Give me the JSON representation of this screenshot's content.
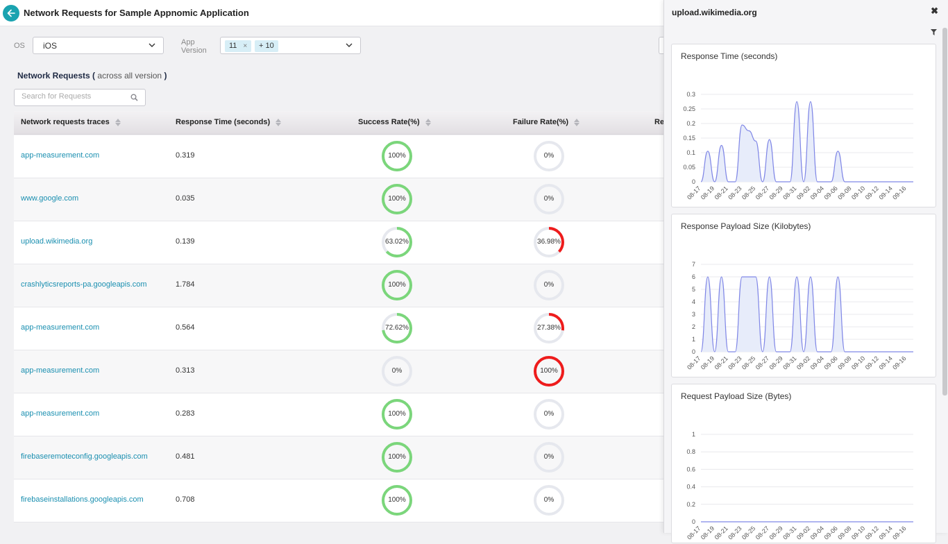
{
  "header": {
    "title": "Network Requests for Sample Appnomic Application"
  },
  "filters": {
    "os_label": "OS",
    "os_value": "iOS",
    "app_version_label_line1": "App",
    "app_version_label_line2": "Version",
    "app_version_chips": [
      "11",
      "+ 10"
    ],
    "chip_remove": "×"
  },
  "section": {
    "title": "Network Requests",
    "paren_open": "(",
    "subtitle": "across all version",
    "paren_close": ")",
    "search_placeholder": "Search for Requests"
  },
  "table": {
    "headers": [
      "Network requests traces",
      "Response Time (seconds)",
      "Success Rate(%)",
      "Failure Rate(%)",
      "Re"
    ],
    "rows": [
      {
        "trace": "app-measurement.com",
        "response_time": "0.319",
        "success": 100,
        "success_label": "100%",
        "failure": 0,
        "failure_label": "0%"
      },
      {
        "trace": "www.google.com",
        "response_time": "0.035",
        "success": 100,
        "success_label": "100%",
        "failure": 0,
        "failure_label": "0%"
      },
      {
        "trace": "upload.wikimedia.org",
        "response_time": "0.139",
        "success": 63.02,
        "success_label": "63.02%",
        "failure": 36.98,
        "failure_label": "36.98%"
      },
      {
        "trace": "crashlyticsreports-pa.googleapis.com",
        "response_time": "1.784",
        "success": 100,
        "success_label": "100%",
        "failure": 0,
        "failure_label": "0%"
      },
      {
        "trace": "app-measurement.com",
        "response_time": "0.564",
        "success": 72.62,
        "success_label": "72.62%",
        "failure": 27.38,
        "failure_label": "27.38%"
      },
      {
        "trace": "app-measurement.com",
        "response_time": "0.313",
        "success": 0,
        "success_label": "0%",
        "failure": 100,
        "failure_label": "100%"
      },
      {
        "trace": "app-measurement.com",
        "response_time": "0.283",
        "success": 100,
        "success_label": "100%",
        "failure": 0,
        "failure_label": "0%"
      },
      {
        "trace": "firebaseremoteconfig.googleapis.com",
        "response_time": "0.481",
        "success": 100,
        "success_label": "100%",
        "failure": 0,
        "failure_label": "0%"
      },
      {
        "trace": "firebaseinstallations.googleapis.com",
        "response_time": "0.708",
        "success": 100,
        "success_label": "100%",
        "failure": 0,
        "failure_label": "0%"
      }
    ]
  },
  "panel": {
    "title": "upload.wikimedia.org",
    "close": "✖"
  },
  "colors": {
    "accent": "#1aa3b0",
    "link": "#1a8fb0",
    "success": "#7bd67b",
    "failure": "#ee1c1c",
    "track": "#e6e8ee",
    "line": "#7f86e6",
    "area": "#e7ecfa"
  },
  "chart_data": [
    {
      "type": "area",
      "title": "Response Time (seconds)",
      "x": [
        "08-17",
        "08-18",
        "08-19",
        "08-20",
        "08-21",
        "08-22",
        "08-23",
        "08-24",
        "08-25",
        "08-26",
        "08-27",
        "08-28",
        "08-29",
        "08-30",
        "08-31",
        "09-01",
        "09-02",
        "09-03",
        "09-04",
        "09-05",
        "09-06",
        "09-07",
        "09-08",
        "09-09",
        "09-10",
        "09-11",
        "09-12",
        "09-13",
        "09-14",
        "09-15",
        "09-16",
        "09-17"
      ],
      "x_tick_labels": [
        "08-17",
        "08-19",
        "08-21",
        "08-23",
        "08-25",
        "08-27",
        "08-29",
        "08-31",
        "09-02",
        "09-04",
        "09-06",
        "09-08",
        "09-10",
        "09-12",
        "09-14",
        "09-16"
      ],
      "series": [
        {
          "values": [
            0,
            0.105,
            0,
            0.125,
            0,
            0,
            0.195,
            0.175,
            0.14,
            0,
            0.145,
            0,
            0,
            0,
            0.275,
            0,
            0.275,
            0,
            0,
            0,
            0.105,
            0,
            0,
            0,
            0,
            0,
            0,
            0,
            0,
            0,
            0,
            0
          ]
        }
      ],
      "ylim": [
        0,
        0.3
      ],
      "y_ticks": [
        "0",
        "0.05",
        "0.1",
        "0.15",
        "0.2",
        "0.25",
        "0.3"
      ]
    },
    {
      "type": "area",
      "title": "Response Payload Size (Kilobytes)",
      "x": [
        "08-17",
        "08-18",
        "08-19",
        "08-20",
        "08-21",
        "08-22",
        "08-23",
        "08-24",
        "08-25",
        "08-26",
        "08-27",
        "08-28",
        "08-29",
        "08-30",
        "08-31",
        "09-01",
        "09-02",
        "09-03",
        "09-04",
        "09-05",
        "09-06",
        "09-07",
        "09-08",
        "09-09",
        "09-10",
        "09-11",
        "09-12",
        "09-13",
        "09-14",
        "09-15",
        "09-16",
        "09-17"
      ],
      "x_tick_labels": [
        "08-17",
        "08-19",
        "08-21",
        "08-23",
        "08-25",
        "08-27",
        "08-29",
        "08-31",
        "09-02",
        "09-04",
        "09-06",
        "09-08",
        "09-10",
        "09-12",
        "09-14",
        "09-16"
      ],
      "series": [
        {
          "values": [
            0,
            6,
            0,
            6,
            0,
            0,
            6,
            6,
            6,
            0,
            6,
            0,
            0,
            0,
            6,
            0,
            6,
            0,
            0,
            0,
            6,
            0,
            0,
            0,
            0,
            0,
            0,
            0,
            0,
            0,
            0,
            0
          ]
        }
      ],
      "ylim": [
        0,
        7
      ],
      "y_ticks": [
        "0",
        "1",
        "2",
        "3",
        "4",
        "5",
        "6",
        "7"
      ]
    },
    {
      "type": "area",
      "title": "Request Payload Size (Bytes)",
      "x": [
        "08-17",
        "08-18",
        "08-19",
        "08-20",
        "08-21",
        "08-22",
        "08-23",
        "08-24",
        "08-25",
        "08-26",
        "08-27",
        "08-28",
        "08-29",
        "08-30",
        "08-31",
        "09-01",
        "09-02",
        "09-03",
        "09-04",
        "09-05",
        "09-06",
        "09-07",
        "09-08",
        "09-09",
        "09-10",
        "09-11",
        "09-12",
        "09-13",
        "09-14",
        "09-15",
        "09-16",
        "09-17"
      ],
      "x_tick_labels": [
        "08-17",
        "08-19",
        "08-21",
        "08-23",
        "08-25",
        "08-27",
        "08-29",
        "08-31",
        "09-02",
        "09-04",
        "09-06",
        "09-08",
        "09-10",
        "09-12",
        "09-14",
        "09-16"
      ],
      "series": [
        {
          "values": [
            0,
            0,
            0,
            0,
            0,
            0,
            0,
            0,
            0,
            0,
            0,
            0,
            0,
            0,
            0,
            0,
            0,
            0,
            0,
            0,
            0,
            0,
            0,
            0,
            0,
            0,
            0,
            0,
            0,
            0,
            0,
            0
          ]
        }
      ],
      "ylim": [
        0,
        1
      ],
      "y_ticks": [
        "0",
        "0.2",
        "0.4",
        "0.6",
        "0.8",
        "1"
      ]
    }
  ]
}
